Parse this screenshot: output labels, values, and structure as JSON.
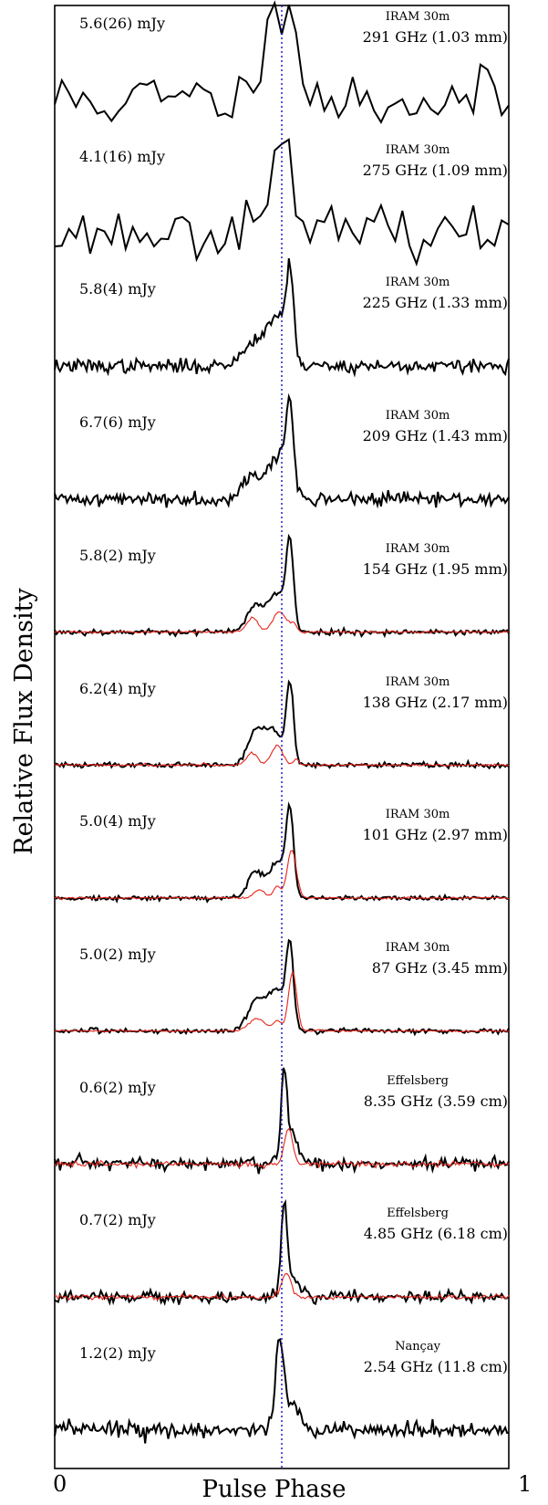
{
  "chart_data": {
    "type": "line",
    "xlabel": "Pulse Phase",
    "ylabel": "Relative Flux Density",
    "xlim": [
      0,
      1
    ],
    "x_ticks": [
      "0",
      "1"
    ],
    "reference_line_phase": 0.5,
    "series_colors": {
      "profile": "#000000",
      "polarized": "#e8231a",
      "reference": "#1f1fd6"
    },
    "panels": [
      {
        "flux": "5.6(26) mJy",
        "telescope": "IRAM 30m",
        "frequency": "291 GHz (1.03 mm)",
        "bins": 64,
        "noise": 0.32,
        "seed": 11,
        "red": false,
        "components": [
          {
            "c": 0.48,
            "w": 0.035,
            "a": 0.55
          },
          {
            "c": 0.515,
            "w": 0.025,
            "a": 1.0
          }
        ]
      },
      {
        "flux": "4.1(16) mJy",
        "telescope": "IRAM 30m",
        "frequency": "275 GHz (1.09 mm)",
        "bins": 64,
        "noise": 0.25,
        "seed": 23,
        "red": false,
        "components": [
          {
            "c": 0.47,
            "w": 0.04,
            "a": 0.4
          },
          {
            "c": 0.51,
            "w": 0.018,
            "a": 1.0
          }
        ]
      },
      {
        "flux": "5.8(4) mJy",
        "telescope": "IRAM 30m",
        "frequency": "225 GHz (1.33 mm)",
        "bins": 256,
        "noise": 0.07,
        "seed": 37,
        "red": false,
        "components": [
          {
            "c": 0.45,
            "w": 0.03,
            "a": 0.35
          },
          {
            "c": 0.495,
            "w": 0.02,
            "a": 0.5
          },
          {
            "c": 0.518,
            "w": 0.008,
            "a": 1.0
          }
        ]
      },
      {
        "flux": "6.7(6) mJy",
        "telescope": "IRAM 30m",
        "frequency": "209 GHz (1.43 mm)",
        "bins": 256,
        "noise": 0.07,
        "seed": 41,
        "red": false,
        "components": [
          {
            "c": 0.44,
            "w": 0.025,
            "a": 0.3
          },
          {
            "c": 0.495,
            "w": 0.02,
            "a": 0.5
          },
          {
            "c": 0.518,
            "w": 0.008,
            "a": 1.0
          }
        ]
      },
      {
        "flux": "5.8(2) mJy",
        "telescope": "IRAM 30m",
        "frequency": "154 GHz (1.95 mm)",
        "bins": 256,
        "noise": 0.03,
        "seed": 53,
        "red": true,
        "components": [
          {
            "c": 0.44,
            "w": 0.018,
            "a": 0.32
          },
          {
            "c": 0.49,
            "w": 0.02,
            "a": 0.48
          },
          {
            "c": 0.518,
            "w": 0.008,
            "a": 1.0
          }
        ],
        "red_components": [
          {
            "c": 0.435,
            "w": 0.012,
            "a": 0.18
          },
          {
            "c": 0.495,
            "w": 0.015,
            "a": 0.25
          },
          {
            "c": 0.525,
            "w": 0.008,
            "a": 0.08
          }
        ]
      },
      {
        "flux": "6.2(4) mJy",
        "telescope": "IRAM 30m",
        "frequency": "138 GHz (2.17 mm)",
        "bins": 256,
        "noise": 0.03,
        "seed": 61,
        "red": true,
        "components": [
          {
            "c": 0.44,
            "w": 0.016,
            "a": 0.38
          },
          {
            "c": 0.48,
            "w": 0.02,
            "a": 0.45
          },
          {
            "c": 0.518,
            "w": 0.008,
            "a": 1.0
          }
        ],
        "red_components": [
          {
            "c": 0.435,
            "w": 0.012,
            "a": 0.15
          },
          {
            "c": 0.49,
            "w": 0.012,
            "a": 0.25
          },
          {
            "c": 0.532,
            "w": 0.006,
            "a": 0.08
          }
        ]
      },
      {
        "flux": "5.0(4) mJy",
        "telescope": "IRAM 30m",
        "frequency": "101 GHz (2.97 mm)",
        "bins": 256,
        "noise": 0.025,
        "seed": 73,
        "red": true,
        "components": [
          {
            "c": 0.44,
            "w": 0.015,
            "a": 0.32
          },
          {
            "c": 0.49,
            "w": 0.02,
            "a": 0.45
          },
          {
            "c": 0.518,
            "w": 0.008,
            "a": 1.0
          }
        ],
        "red_components": [
          {
            "c": 0.45,
            "w": 0.012,
            "a": 0.1
          },
          {
            "c": 0.49,
            "w": 0.008,
            "a": 0.15
          },
          {
            "c": 0.522,
            "w": 0.01,
            "a": 0.6
          }
        ]
      },
      {
        "flux": "5.0(2) mJy",
        "telescope": "IRAM 30m",
        "frequency": "87 GHz (3.45 mm)",
        "bins": 256,
        "noise": 0.025,
        "seed": 83,
        "red": true,
        "components": [
          {
            "c": 0.445,
            "w": 0.02,
            "a": 0.38
          },
          {
            "c": 0.49,
            "w": 0.018,
            "a": 0.5
          },
          {
            "c": 0.518,
            "w": 0.008,
            "a": 1.0
          }
        ],
        "red_components": [
          {
            "c": 0.445,
            "w": 0.018,
            "a": 0.15
          },
          {
            "c": 0.49,
            "w": 0.01,
            "a": 0.12
          },
          {
            "c": 0.524,
            "w": 0.009,
            "a": 0.75
          }
        ]
      },
      {
        "flux": "0.6(2) mJy",
        "telescope": "Effelsberg",
        "frequency": "8.35 GHz (3.59 cm)",
        "bins": 256,
        "noise": 0.07,
        "seed": 97,
        "red": true,
        "components": [
          {
            "c": 0.505,
            "w": 0.006,
            "a": 1.0
          },
          {
            "c": 0.52,
            "w": 0.015,
            "a": 0.4
          }
        ],
        "red_components": [
          {
            "c": 0.515,
            "w": 0.009,
            "a": 0.45
          }
        ]
      },
      {
        "flux": "0.7(2) mJy",
        "telescope": "Effelsberg",
        "frequency": "4.85 GHz (6.18 cm)",
        "bins": 256,
        "noise": 0.06,
        "seed": 103,
        "red": true,
        "components": [
          {
            "c": 0.505,
            "w": 0.006,
            "a": 1.0
          },
          {
            "c": 0.52,
            "w": 0.015,
            "a": 0.3
          }
        ],
        "red_components": [
          {
            "c": 0.51,
            "w": 0.01,
            "a": 0.3
          }
        ]
      },
      {
        "flux": "1.2(2) mJy",
        "telescope": "Nançay",
        "frequency": "2.54 GHz (11.8 cm)",
        "bins": 256,
        "noise": 0.08,
        "seed": 113,
        "red": false,
        "components": [
          {
            "c": 0.495,
            "w": 0.008,
            "a": 1.0
          },
          {
            "c": 0.515,
            "w": 0.02,
            "a": 0.35
          }
        ]
      }
    ]
  }
}
